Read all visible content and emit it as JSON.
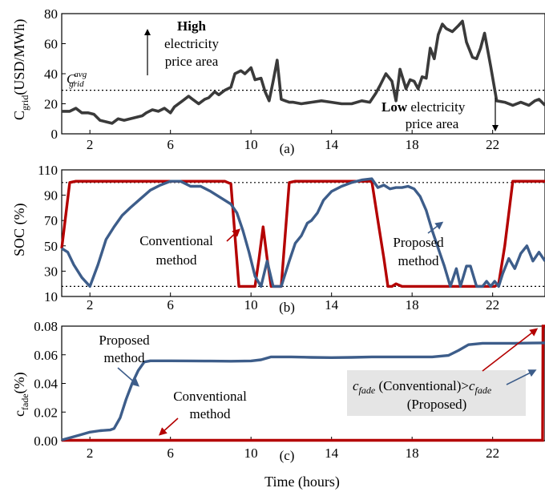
{
  "chart_data": [
    {
      "type": "line",
      "panel_label": "(a)",
      "ylabel_main": "C",
      "ylabel_sub": "grid",
      "ylabel_unit": "(USD/MWh)",
      "xlim": [
        0.6,
        24.6
      ],
      "ylim": [
        0,
        80
      ],
      "xticks": [
        2,
        6,
        10,
        14,
        18,
        22
      ],
      "yticks": [
        0,
        20,
        40,
        60,
        80
      ],
      "hline": 29,
      "hline_label_main": "C",
      "hline_label_sup": "avg",
      "hline_label_sub": "grid",
      "annotations": {
        "high_bold": "High",
        "high_line2": "electricity",
        "high_line3": "price area",
        "low_bold": "Low",
        "low_rest": " electricity",
        "low_line2": "price area"
      },
      "series": [
        {
          "color": "#3a3a3a",
          "x": [
            0.6,
            1,
            1.3,
            1.6,
            1.9,
            2.2,
            2.5,
            2.8,
            3.1,
            3.4,
            3.7,
            4.0,
            4.3,
            4.6,
            4.8,
            5.1,
            5.4,
            5.7,
            6.0,
            6.2,
            6.6,
            6.9,
            7.1,
            7.4,
            7.7,
            7.9,
            8.2,
            8.4,
            8.7,
            9.0,
            9.2,
            9.5,
            9.7,
            10.0,
            10.2,
            10.5,
            10.7,
            10.9,
            11.1,
            11.3,
            11.5,
            11.7,
            11.9,
            12.1,
            12.5,
            13.0,
            13.5,
            14.0,
            14.5,
            15.0,
            15.5,
            15.9,
            16.2,
            16.4,
            16.7,
            17.0,
            17.2,
            17.4,
            17.7,
            17.9,
            18.1,
            18.3,
            18.5,
            18.7,
            18.9,
            19.1,
            19.3,
            19.5,
            19.7,
            20.0,
            20.3,
            20.5,
            20.7,
            21.0,
            21.2,
            21.4,
            21.6,
            21.9,
            22.2,
            22.6,
            23.0,
            23.4,
            23.8,
            24.1,
            24.3,
            24.6
          ],
          "y": [
            15,
            15,
            17,
            14,
            14,
            13,
            9,
            8,
            7,
            10,
            9,
            10,
            11,
            12,
            14,
            16,
            15,
            17,
            14,
            18,
            22,
            25,
            23,
            20,
            23,
            24,
            28,
            26,
            29,
            31,
            40,
            42,
            40,
            44,
            36,
            37,
            28,
            22,
            35,
            49,
            23,
            22,
            21,
            21,
            20,
            21,
            22,
            21,
            20,
            20,
            22,
            21,
            27,
            32,
            40,
            35,
            22,
            43,
            30,
            36,
            35,
            30,
            38,
            37,
            57,
            50,
            66,
            73,
            70,
            68,
            72,
            75,
            61,
            51,
            50,
            57,
            67,
            45,
            22,
            21,
            19,
            21,
            19,
            22,
            23,
            19
          ]
        }
      ]
    },
    {
      "type": "line",
      "panel_label": "(b)",
      "ylabel": "SOC (%)",
      "xlim": [
        0.6,
        24.6
      ],
      "ylim": [
        10,
        110
      ],
      "xticks": [
        2,
        6,
        10,
        14,
        18,
        22
      ],
      "yticks": [
        10,
        30,
        50,
        70,
        90,
        110
      ],
      "hlines": [
        100,
        18
      ],
      "annotations": {
        "conv_line1": "Conventional",
        "conv_line2": "method",
        "prop_line1": "Proposed",
        "prop_line2": "method"
      },
      "series": [
        {
          "role": "conventional",
          "color": "#b40000",
          "x": [
            0.6,
            1.0,
            1.3,
            8.7,
            9.0,
            9.4,
            10.2,
            10.4,
            10.6,
            10.8,
            11.0,
            11.2,
            11.3,
            11.5,
            11.9,
            12.2,
            16.0,
            16.3,
            16.6,
            16.8,
            17.0,
            17.2,
            17.5,
            21.5,
            21.8,
            22.1,
            22.3,
            22.6,
            23.0,
            24.6
          ],
          "y": [
            48,
            100,
            101,
            101,
            99,
            18,
            18,
            40,
            65,
            40,
            18,
            18,
            18,
            18,
            100,
            101,
            101,
            70,
            40,
            18,
            18,
            20,
            18,
            18,
            18,
            18,
            20,
            50,
            101,
            101
          ]
        },
        {
          "role": "proposed",
          "color": "#3d5d8a",
          "x": [
            0.6,
            0.9,
            1.2,
            1.6,
            2.0,
            2.4,
            2.8,
            3.2,
            3.6,
            4.0,
            4.5,
            5.0,
            5.5,
            6.0,
            6.5,
            7.0,
            7.5,
            8.0,
            8.5,
            9.0,
            9.3,
            9.6,
            9.9,
            10.2,
            10.5,
            10.8,
            11.1,
            11.5,
            11.9,
            12.2,
            12.5,
            12.8,
            13.0,
            13.3,
            13.6,
            14.0,
            14.5,
            15.0,
            15.5,
            16.0,
            16.3,
            16.6,
            16.9,
            17.2,
            17.5,
            17.8,
            18.1,
            18.4,
            18.7,
            19.0,
            19.3,
            19.6,
            19.9,
            20.2,
            20.4,
            20.7,
            20.9,
            21.2,
            21.5,
            21.7,
            21.9,
            22.1,
            22.3,
            22.5,
            22.8,
            23.1,
            23.4,
            23.7,
            24.0,
            24.3,
            24.6
          ],
          "y": [
            48,
            45,
            35,
            25,
            18,
            35,
            55,
            65,
            74,
            80,
            87,
            94,
            98,
            101,
            101,
            97,
            97,
            93,
            88,
            83,
            76,
            62,
            45,
            26,
            18,
            38,
            18,
            18,
            38,
            52,
            58,
            68,
            70,
            76,
            86,
            93,
            97,
            100,
            102,
            103,
            96,
            98,
            95,
            96,
            96,
            97,
            95,
            89,
            78,
            62,
            48,
            34,
            18,
            32,
            18,
            34,
            34,
            18,
            18,
            22,
            18,
            22,
            18,
            28,
            40,
            32,
            44,
            50,
            38,
            45,
            38
          ]
        }
      ]
    },
    {
      "type": "line",
      "panel_label": "(c)",
      "ylabel_main": "c",
      "ylabel_sub": "fade",
      "ylabel_unit": "(%)",
      "xlabel": "Time (hours)",
      "xlim": [
        0.6,
        24.6
      ],
      "ylim": [
        0,
        0.08
      ],
      "xticks": [
        2,
        6,
        10,
        14,
        18,
        22
      ],
      "yticks": [
        "0.00",
        "0.02",
        "0.04",
        "0.06",
        "0.08"
      ],
      "annotations": {
        "prop_line1": "Proposed",
        "prop_line2": "method",
        "conv_line1": "Conventional",
        "conv_line2": "method",
        "cmp_c": "c",
        "cmp_sub": "fade",
        "cmp_mid": " (Conventional)>",
        "cmp_end": "(Proposed)"
      },
      "series": [
        {
          "role": "conventional",
          "color": "#b40000",
          "x": [
            0.6,
            24.48,
            24.5,
            24.6
          ],
          "y": [
            0.0003,
            0.0003,
            0.08,
            0.08
          ]
        },
        {
          "role": "proposed",
          "color": "#3d5d8a",
          "x": [
            0.6,
            1.0,
            1.5,
            2.0,
            2.5,
            3.0,
            3.2,
            3.5,
            3.8,
            4.1,
            4.4,
            4.7,
            5.0,
            5.5,
            6.0,
            7.0,
            8.0,
            9.0,
            10.0,
            10.5,
            11.0,
            12.0,
            13.0,
            14.0,
            15.0,
            16.0,
            17.0,
            18.0,
            19.0,
            19.8,
            20.3,
            20.8,
            21.5,
            22.0,
            23.0,
            24.0,
            24.6
          ],
          "y": [
            0.0005,
            0.002,
            0.004,
            0.006,
            0.007,
            0.0075,
            0.0085,
            0.016,
            0.029,
            0.04,
            0.049,
            0.055,
            0.0558,
            0.0558,
            0.0558,
            0.0557,
            0.0556,
            0.0555,
            0.0557,
            0.0565,
            0.0585,
            0.0585,
            0.0582,
            0.058,
            0.0582,
            0.0585,
            0.0585,
            0.0585,
            0.0585,
            0.0595,
            0.063,
            0.067,
            0.068,
            0.068,
            0.068,
            0.0682,
            0.0683
          ]
        }
      ]
    }
  ]
}
